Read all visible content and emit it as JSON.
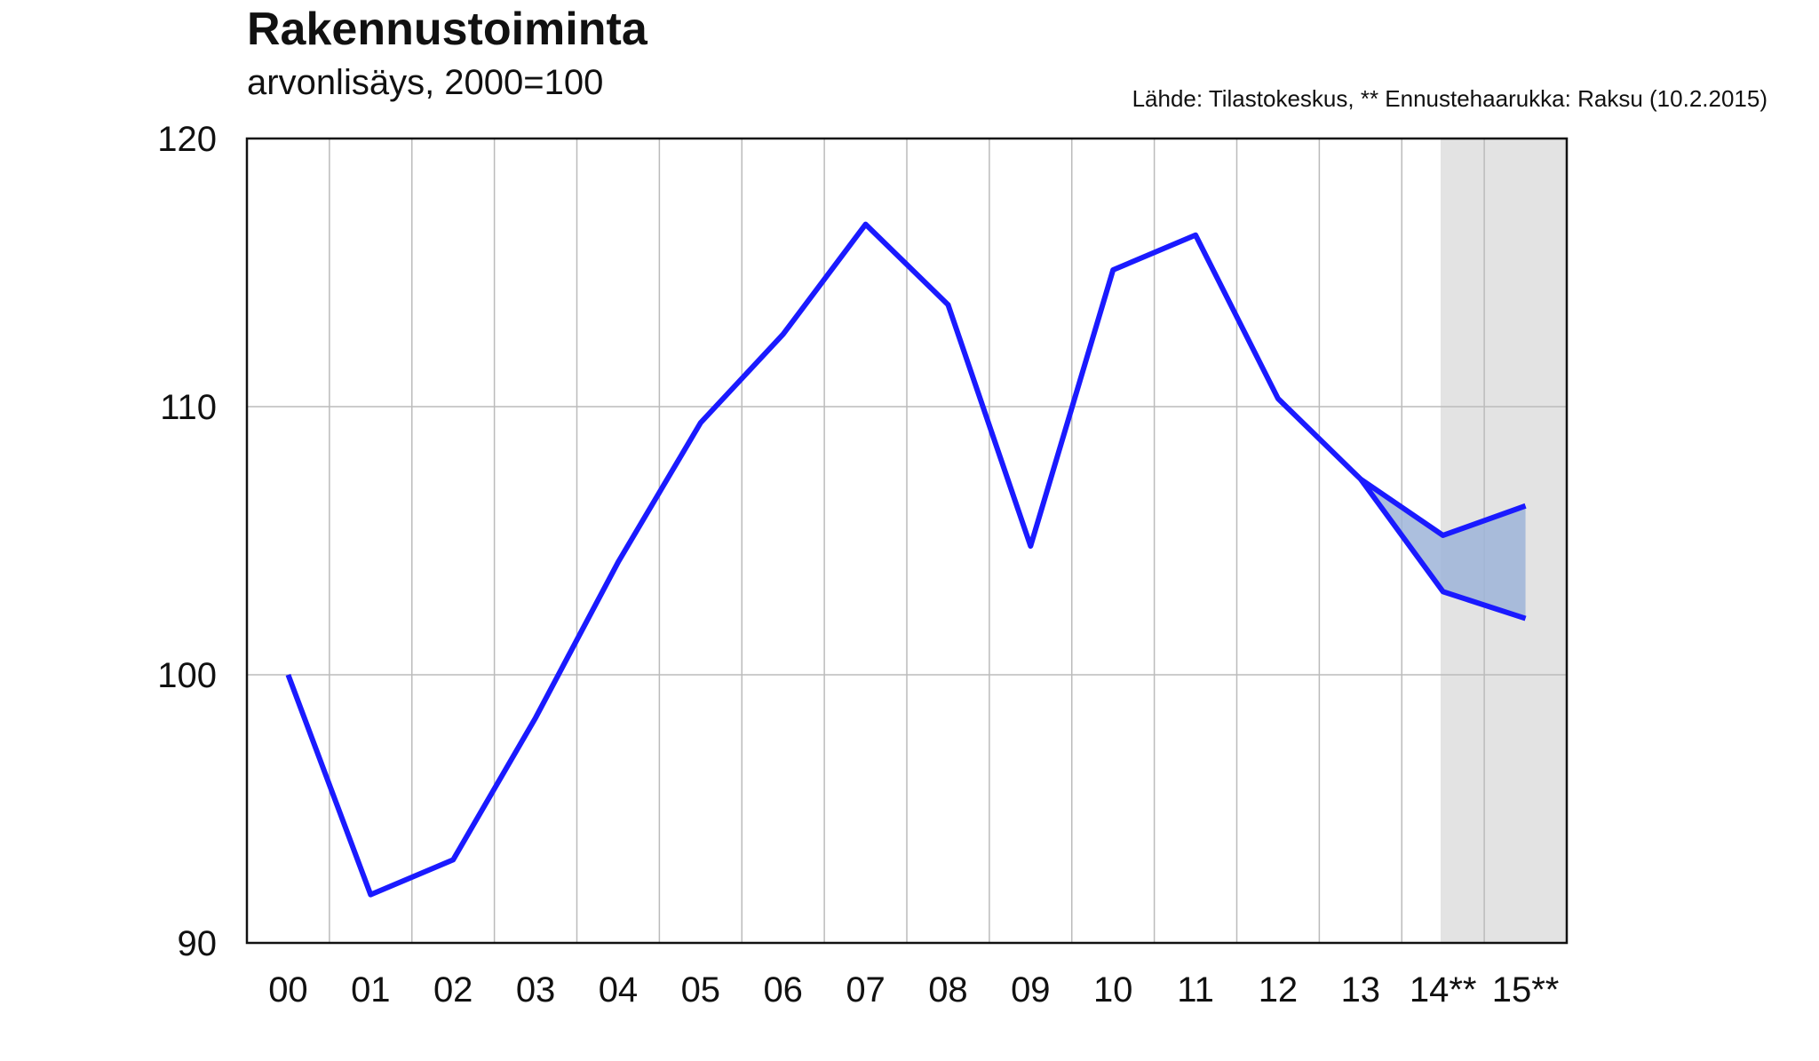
{
  "chart_data": {
    "type": "line",
    "title": "Rakennustoiminta",
    "subtitle": "arvonlisäys, 2000=100",
    "source": "Lähde: Tilastokeskus, ** Ennustehaarukka: Raksu (10.2.2015)",
    "categories": [
      "00",
      "01",
      "02",
      "03",
      "04",
      "05",
      "06",
      "07",
      "08",
      "09",
      "10",
      "11",
      "12",
      "13",
      "14**",
      "15**"
    ],
    "series": [
      {
        "color": "#1a1aff",
        "values": [
          100,
          91.8,
          93.1,
          98.4,
          104.2,
          109.4,
          112.7,
          116.8,
          113.8,
          104.8,
          115.1,
          116.4,
          110.3,
          107.3,
          null,
          null
        ]
      },
      {
        "color": "#1a1aff",
        "values": [
          null,
          null,
          null,
          null,
          null,
          null,
          null,
          null,
          null,
          null,
          null,
          null,
          null,
          107.3,
          105.2,
          106.3
        ]
      },
      {
        "color": "#1a1aff",
        "values": [
          null,
          null,
          null,
          null,
          null,
          null,
          null,
          null,
          null,
          null,
          null,
          null,
          null,
          107.3,
          103.1,
          102.1
        ]
      }
    ],
    "band_color": "#9db4d8",
    "ylim": [
      90,
      120
    ],
    "yticks": [
      90,
      100,
      110,
      120
    ],
    "grid": true
  }
}
